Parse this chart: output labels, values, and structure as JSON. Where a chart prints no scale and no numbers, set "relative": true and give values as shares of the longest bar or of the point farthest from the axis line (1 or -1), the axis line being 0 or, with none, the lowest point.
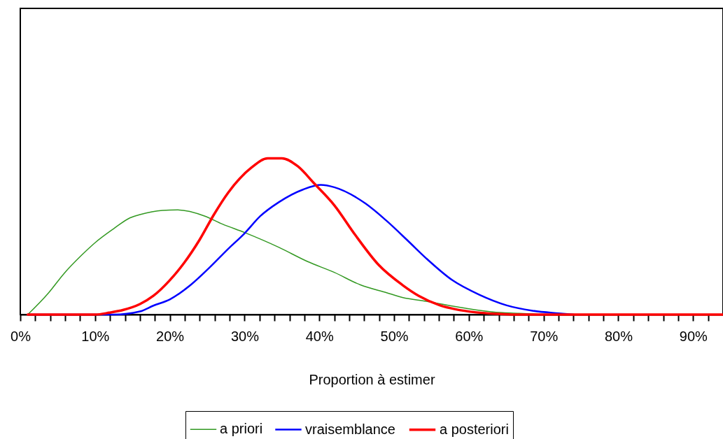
{
  "chart_data": {
    "type": "line",
    "relative": true,
    "xlabel": "Proportion à estimer",
    "legend": "bottom",
    "grid": false,
    "xlim": [
      0,
      94
    ],
    "xticks": [
      {
        "value": 0,
        "label": "0%"
      },
      {
        "value": 2,
        "label": null
      },
      {
        "value": 4,
        "label": null
      },
      {
        "value": 6,
        "label": null
      },
      {
        "value": 8,
        "label": null
      },
      {
        "value": 10,
        "label": "10%"
      },
      {
        "value": 12,
        "label": null
      },
      {
        "value": 14,
        "label": null
      },
      {
        "value": 16,
        "label": null
      },
      {
        "value": 18,
        "label": null
      },
      {
        "value": 20,
        "label": "20%"
      },
      {
        "value": 22,
        "label": null
      },
      {
        "value": 24,
        "label": null
      },
      {
        "value": 26,
        "label": null
      },
      {
        "value": 28,
        "label": null
      },
      {
        "value": 30,
        "label": "30%"
      },
      {
        "value": 32,
        "label": null
      },
      {
        "value": 34,
        "label": null
      },
      {
        "value": 36,
        "label": null
      },
      {
        "value": 38,
        "label": null
      },
      {
        "value": 40,
        "label": "40%"
      },
      {
        "value": 42,
        "label": null
      },
      {
        "value": 44,
        "label": null
      },
      {
        "value": 46,
        "label": null
      },
      {
        "value": 48,
        "label": null
      },
      {
        "value": 50,
        "label": "50%"
      },
      {
        "value": 52,
        "label": null
      },
      {
        "value": 54,
        "label": null
      },
      {
        "value": 56,
        "label": null
      },
      {
        "value": 58,
        "label": null
      },
      {
        "value": 60,
        "label": "60%"
      },
      {
        "value": 62,
        "label": null
      },
      {
        "value": 64,
        "label": null
      },
      {
        "value": 66,
        "label": null
      },
      {
        "value": 68,
        "label": null
      },
      {
        "value": 70,
        "label": "70%"
      },
      {
        "value": 72,
        "label": null
      },
      {
        "value": 74,
        "label": null
      },
      {
        "value": 76,
        "label": null
      },
      {
        "value": 78,
        "label": null
      },
      {
        "value": 80,
        "label": "80%"
      },
      {
        "value": 82,
        "label": null
      },
      {
        "value": 84,
        "label": null
      },
      {
        "value": 86,
        "label": null
      },
      {
        "value": 88,
        "label": null
      },
      {
        "value": 90,
        "label": "90%"
      },
      {
        "value": 92,
        "label": null
      }
    ],
    "series": [
      {
        "name": "a priori",
        "color": "#339922",
        "x": [
          1,
          3.8,
          5.8,
          8.2,
          10,
          12.5,
          14.7,
          16,
          19,
          21,
          24.7,
          27,
          30,
          34.6,
          38.4,
          42,
          45.5,
          49,
          51.1,
          54.3,
          59.6,
          63.2,
          66.7,
          70
        ],
        "values": [
          0,
          0.14,
          0.26,
          0.38,
          0.46,
          0.55,
          0.62,
          0.64,
          0.667,
          0.67,
          0.63,
          0.58,
          0.525,
          0.43,
          0.34,
          0.27,
          0.19,
          0.14,
          0.11,
          0.085,
          0.04,
          0.017,
          0.008,
          0
        ]
      },
      {
        "name": "vraisemblance",
        "color": "#0000ff",
        "x": [
          1,
          10,
          12.5,
          16,
          17.8,
          20,
          22.8,
          25.3,
          27.8,
          30,
          32.1,
          34.6,
          37.8,
          40.2,
          42,
          46.2,
          49,
          51.9,
          54.3,
          57.8,
          61.4,
          65,
          68.5,
          72,
          74
        ],
        "values": [
          0,
          0,
          0,
          0.02,
          0.057,
          0.097,
          0.19,
          0.3,
          0.42,
          0.52,
          0.63,
          0.72,
          0.8,
          0.83,
          0.815,
          0.71,
          0.6,
          0.47,
          0.36,
          0.22,
          0.127,
          0.06,
          0.025,
          0.008,
          0
        ]
      },
      {
        "name": "a posteriori",
        "color": "#ff0000",
        "x": [
          1,
          10,
          11.9,
          13.8,
          16,
          17.8,
          20,
          21.9,
          24,
          25.9,
          27.8,
          30.9,
          33.1,
          35,
          37.1,
          39.3,
          42,
          44.8,
          47.9,
          51.1,
          53.3,
          56.1,
          58.2,
          61,
          63.9,
          66,
          80,
          94
        ],
        "values": [
          0,
          0,
          0.012,
          0.03,
          0.067,
          0.12,
          0.22,
          0.33,
          0.48,
          0.64,
          0.78,
          0.94,
          1.0,
          1.0,
          0.95,
          0.84,
          0.7,
          0.51,
          0.32,
          0.19,
          0.12,
          0.06,
          0.034,
          0.014,
          0.004,
          0,
          0,
          0
        ]
      }
    ]
  }
}
